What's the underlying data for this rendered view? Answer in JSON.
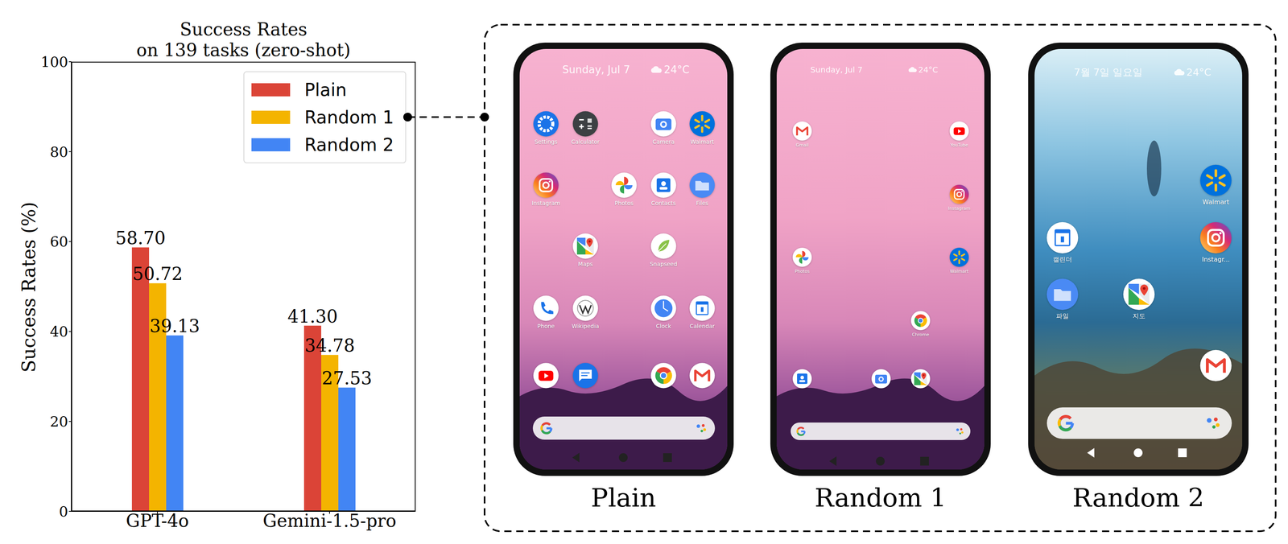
{
  "chart_data": {
    "type": "bar",
    "title": "Success Rates\non 139 tasks (zero-shot)",
    "y_label": "Success Rates (%)",
    "categories": [
      "GPT-4o",
      "Gemini-1.5-pro"
    ],
    "series": [
      {
        "name": "Plain",
        "color": "#db4437",
        "values": [
          58.7,
          41.3
        ],
        "value_labels": [
          "58.70",
          "41.30"
        ]
      },
      {
        "name": "Random 1",
        "color": "#f4b400",
        "values": [
          50.72,
          34.78
        ],
        "value_labels": [
          "50.72",
          "34.78"
        ]
      },
      {
        "name": "Random 2",
        "color": "#4285f4",
        "values": [
          39.13,
          27.53
        ],
        "value_labels": [
          "39.13",
          "27.53"
        ]
      }
    ],
    "ylim": [
      0,
      100
    ],
    "yticks": [
      0,
      20,
      40,
      60,
      80,
      100
    ],
    "grid": false,
    "legend": "upper right",
    "data_labels": true
  },
  "screens": [
    {
      "caption": "Plain",
      "date": "Sunday, Jul 7",
      "weather": "24°C",
      "app_labels": [
        "Settings",
        "Calculator",
        "Camera",
        "Walmart",
        "Instagram",
        "Photos",
        "Contacts",
        "Files",
        "Maps",
        "Snapseed",
        "Phone",
        "Wikipedia",
        "Clock",
        "Calendar",
        null,
        null,
        null,
        null
      ]
    },
    {
      "caption": "Random 1",
      "date": "Sunday, Jul 7",
      "weather": "24°C",
      "app_labels": [
        "Gmail",
        "YouTube",
        "Instagram",
        "Photos",
        "Walmart",
        "Chrome",
        null,
        null,
        null
      ]
    },
    {
      "caption": "Random 2",
      "date": "7월 7일 일요일",
      "weather": "24°C",
      "app_labels": [
        "Walmart",
        "캘린더",
        "Instagr...",
        "파일",
        "지도",
        null
      ]
    }
  ]
}
